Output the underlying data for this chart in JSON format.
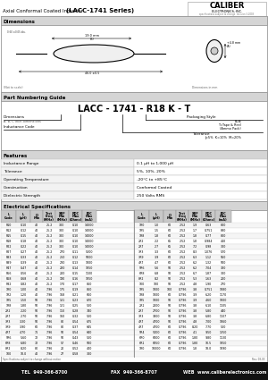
{
  "title_normal": "Axial Conformal Coated Inductor",
  "title_bold": "(LACC-1741 Series)",
  "company_line1": "CALIBER",
  "company_line2": "ELECTRONICS, INC.",
  "company_line3": "specifications subject to change  revision 3-2003",
  "bg_color": "#ffffff",
  "footer_bg": "#111111",
  "tel": "TEL  949-366-8700",
  "fax": "FAX  949-366-8707",
  "web": "WEB  www.caliberelectronics.com",
  "sec_dims": "Dimensions",
  "sec_part": "Part Numbering Guide",
  "sec_feat": "Features",
  "sec_elec": "Electrical Specifications",
  "features": [
    [
      "Inductance Range",
      "0.1 μH to 1,000 μH"
    ],
    [
      "Tolerance",
      "5%, 10%, 20%"
    ],
    [
      "Operating Temperature",
      "-20°C to +85°C"
    ],
    [
      "Construction",
      "Conformal Coated"
    ],
    [
      "Dielectric Strength",
      "250 Volts RMS"
    ]
  ],
  "part_number": "LACC - 1741 - R18 K - T",
  "col_headers_top": [
    "L",
    "L",
    "Q",
    "Test\nFreq",
    "SRF\nMin",
    "RDC\nMax",
    "IDC\nMax"
  ],
  "col_headers_bot": [
    "Code",
    "(μH)",
    "Min",
    "(MHz)",
    "(MHz)",
    "(Ohms)",
    "(mA)"
  ],
  "table_data": [
    [
      "R10",
      "0.10",
      "40",
      "25.2",
      "300",
      "0.10",
      "14000",
      "1R0",
      "1.0",
      "60",
      "2.52",
      "1.9",
      "0.63",
      "800"
    ],
    [
      "R12",
      "0.12",
      "40",
      "25.2",
      "300",
      "0.10",
      "14000",
      "1R5",
      "1.5",
      "60",
      "2.52",
      "1.7",
      "0.751",
      "880"
    ],
    [
      "R15",
      "0.15",
      "40",
      "25.2",
      "300",
      "0.10",
      "14000",
      "1R8",
      "1.8",
      "60",
      "2.52",
      "1.8",
      "0.77",
      "800"
    ],
    [
      "R18",
      "0.18",
      "40",
      "25.2",
      "300",
      "0.10",
      "14000",
      "2R2",
      "2.2",
      "65",
      "2.52",
      "1.8",
      "0.984",
      "410"
    ],
    [
      "R22",
      "0.22",
      "40",
      "25.2",
      "300",
      "0.10",
      "14000",
      "2R7",
      "2.7",
      "65",
      "2.52",
      "7.2",
      "0.98",
      "300"
    ],
    [
      "R27",
      "0.27",
      "40",
      "25.2",
      "270",
      "0.11",
      "5200",
      "3R3",
      "3.3",
      "60",
      "2.52",
      "8.3",
      "1.076",
      "570"
    ],
    [
      "R33",
      "0.33",
      "40",
      "25.2",
      "250",
      "0.12",
      "5000",
      "3R9",
      "3.9",
      "60",
      "2.52",
      "6.3",
      "1.12",
      "550"
    ],
    [
      "R39",
      "0.39",
      "40",
      "25.2",
      "230",
      "0.13",
      "1000",
      "4R7",
      "4.7",
      "60",
      "2.52",
      "6.2",
      "1.32",
      "500"
    ],
    [
      "R47",
      "0.47",
      "40",
      "25.2",
      "220",
      "0.14",
      "1050",
      "5R6",
      "5.6",
      "50",
      "2.52",
      "6.2",
      "7.04",
      "320"
    ],
    [
      "R56",
      "0.56",
      "40",
      "25.2",
      "200",
      "0.15",
      "1100",
      "6R8",
      "6.8",
      "50",
      "2.52",
      "6.7",
      "1.87",
      "300"
    ],
    [
      "R68",
      "0.68",
      "40",
      "25.2",
      "190",
      "0.16",
      "1050",
      "8R2",
      "8.2",
      "50",
      "2.52",
      "5.3",
      "1.63",
      "200"
    ],
    [
      "R82",
      "0.82",
      "40",
      "25.2",
      "170",
      "0.17",
      "860",
      "100",
      "100",
      "50",
      "2.52",
      "4.8",
      "1.90",
      "270"
    ],
    [
      "1R0",
      "1.00",
      "40",
      "7.96",
      "175",
      "0.19",
      "860",
      "1R5",
      "1000",
      "100",
      "0.796",
      "3.8",
      "0.751",
      "1080"
    ],
    [
      "1R2",
      "1.20",
      "40",
      "7.96",
      "168",
      "0.21",
      "660",
      "1R8",
      "1000",
      "60",
      "0.796",
      "3.9",
      "6.20",
      "1170"
    ],
    [
      "1R5",
      "1.50",
      "50",
      "7.96",
      "131",
      "0.23",
      "670",
      "1R5",
      "1000",
      "50",
      "0.796",
      "3.9",
      "4.60",
      "1000"
    ],
    [
      "1R8",
      "1.80",
      "50",
      "7.96",
      "121",
      "0.25",
      "520",
      "2R1",
      "2000",
      "50",
      "0.796",
      "3.8",
      "6.10",
      "1105"
    ],
    [
      "2R2",
      "2.20",
      "50",
      "7.96",
      "110",
      "0.28",
      "740",
      "2R7",
      "2700",
      "50",
      "0.796",
      "3.8",
      "5.80",
      "440"
    ],
    [
      "2R7",
      "2.70",
      "50",
      "7.96",
      "160",
      "0.32",
      "520",
      "3R3",
      "3300",
      "50",
      "0.796",
      "3.8",
      "6.80",
      "1107"
    ],
    [
      "3R3",
      "3.30",
      "50",
      "7.96",
      "80",
      "0.54",
      "675",
      "4R7",
      "4700",
      "50",
      "0.796",
      "4.8",
      "7.00",
      "1060"
    ],
    [
      "3R9",
      "3.90",
      "60",
      "7.96",
      "80",
      "0.37",
      "645",
      "4R7",
      "4700",
      "60",
      "0.796",
      "8.20",
      "7.70",
      "520"
    ],
    [
      "4R7",
      "4.70",
      "71",
      "7.96",
      "50",
      "0.54",
      "640",
      "5R4",
      "5400",
      "60",
      "0.796",
      "4.1",
      "9.50",
      "1250"
    ],
    [
      "5R6",
      "5.60",
      "72",
      "7.96",
      "50",
      "0.43",
      "520",
      "6R0",
      "6800",
      "60",
      "0.796",
      "1.80",
      "9.80",
      "1130"
    ],
    [
      "6R8",
      "6.80",
      "72",
      "7.96",
      "57",
      "0.46",
      "500",
      "6R1",
      "6850",
      "60",
      "0.796",
      "1.80",
      "10.5",
      "1050"
    ],
    [
      "8R2",
      "8.20",
      "80",
      "7.96",
      "20",
      "0.52",
      "400",
      "1R0",
      "10000",
      "60",
      "0.796",
      "1.8",
      "18.0",
      "1090"
    ],
    [
      "100",
      "10.0",
      "40",
      "7.96",
      "27",
      "0.58",
      "300",
      "",
      "",
      "",
      "",
      "",
      "",
      ""
    ]
  ]
}
